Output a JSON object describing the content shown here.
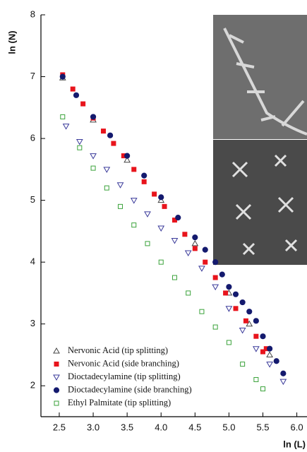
{
  "chart_data": {
    "type": "scatter",
    "x_label": "ln (L)",
    "y_label": "ln (N)",
    "xlim": [
      2.23,
      6.15
    ],
    "ylim": [
      1.5,
      8
    ],
    "xticks": [
      2.5,
      {
        "value": 3,
        "label": "3.0"
      },
      3.5,
      {
        "value": 4,
        "label": "4.0"
      },
      4.5,
      {
        "value": 5,
        "label": "5.0"
      },
      5.5,
      {
        "value": 6,
        "label": "6.0"
      }
    ],
    "yticks": [
      2,
      3,
      4,
      5,
      6,
      7,
      8
    ],
    "series": [
      {
        "name": "Nervonic Acid (tip splitting)",
        "color": "#444444",
        "marker": "triangle-up",
        "filled": false,
        "x": [
          2.55,
          3.0,
          3.5,
          4.0,
          4.5,
          5.0,
          5.3,
          5.6
        ],
        "values": [
          6.98,
          6.3,
          5.65,
          5.0,
          4.3,
          3.5,
          3.0,
          2.5
        ]
      },
      {
        "name": "Nervonic Acid (side branching)",
        "color": "#e8141c",
        "marker": "square",
        "filled": true,
        "x": [
          2.55,
          2.7,
          2.85,
          3.0,
          3.15,
          3.3,
          3.45,
          3.6,
          3.75,
          3.9,
          4.05,
          4.2,
          4.35,
          4.5,
          4.65,
          4.8,
          4.95,
          5.1,
          5.25,
          5.4,
          5.5,
          5.55
        ],
        "values": [
          7.03,
          6.8,
          6.56,
          6.33,
          6.12,
          5.92,
          5.72,
          5.5,
          5.3,
          5.1,
          4.9,
          4.68,
          4.45,
          4.22,
          4.0,
          3.75,
          3.5,
          3.25,
          3.05,
          2.8,
          2.55,
          2.6
        ]
      },
      {
        "name": "Dioctadecylamine (tip splitting)",
        "color": "#3a3a9a",
        "marker": "triangle-down",
        "filled": false,
        "x": [
          2.6,
          2.8,
          3.0,
          3.2,
          3.4,
          3.6,
          3.8,
          4.0,
          4.2,
          4.4,
          4.6,
          4.8,
          5.0,
          5.2,
          5.4,
          5.6,
          5.8
        ],
        "values": [
          6.2,
          5.95,
          5.72,
          5.5,
          5.25,
          5.0,
          4.78,
          4.55,
          4.35,
          4.15,
          3.9,
          3.6,
          3.25,
          2.9,
          2.6,
          2.35,
          2.07
        ]
      },
      {
        "name": "Dioctadecylamine (side branching)",
        "color": "#141a6e",
        "marker": "circle",
        "filled": true,
        "x": [
          2.55,
          2.75,
          3.0,
          3.25,
          3.5,
          3.75,
          4.0,
          4.25,
          4.5,
          4.65,
          4.8,
          4.9,
          5.0,
          5.1,
          5.2,
          5.3,
          5.4,
          5.5,
          5.6,
          5.7,
          5.8
        ],
        "values": [
          7.0,
          6.7,
          6.35,
          6.05,
          5.72,
          5.4,
          5.05,
          4.72,
          4.4,
          4.2,
          4.0,
          3.8,
          3.6,
          3.48,
          3.35,
          3.2,
          3.05,
          2.8,
          2.6,
          2.4,
          2.2
        ]
      },
      {
        "name": "Ethyl Palmitate (tip splitting)",
        "color": "#3aa23a",
        "marker": "square",
        "filled": false,
        "x": [
          2.55,
          2.8,
          3.0,
          3.2,
          3.4,
          3.6,
          3.8,
          4.0,
          4.2,
          4.4,
          4.6,
          4.8,
          5.0,
          5.2,
          5.4,
          5.5
        ],
        "values": [
          6.35,
          5.85,
          5.52,
          5.2,
          4.9,
          4.6,
          4.3,
          4.0,
          3.75,
          3.5,
          3.2,
          2.95,
          2.7,
          2.35,
          2.1,
          1.95
        ]
      }
    ]
  }
}
